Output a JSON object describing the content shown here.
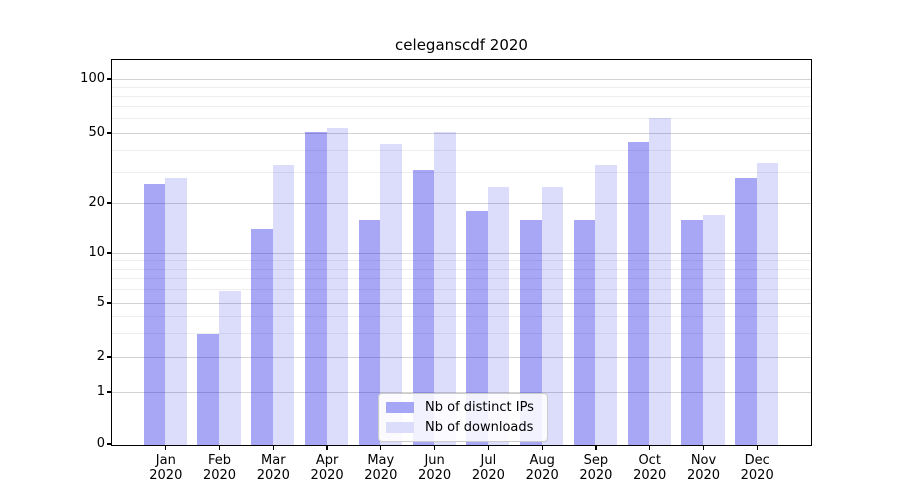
{
  "chart_data": {
    "type": "bar",
    "title": "celeganscdf 2020",
    "months": [
      "Jan",
      "Feb",
      "Mar",
      "Apr",
      "May",
      "Jun",
      "Jul",
      "Aug",
      "Sep",
      "Oct",
      "Nov",
      "Dec"
    ],
    "x_tick_year": "2020",
    "categories": [
      "Jan 2020",
      "Feb 2020",
      "Mar 2020",
      "Apr 2020",
      "May 2020",
      "Jun 2020",
      "Jul 2020",
      "Aug 2020",
      "Sep 2020",
      "Oct 2020",
      "Nov 2020",
      "Dec 2020"
    ],
    "series": [
      {
        "name": "Nb of distinct IPs",
        "color": "#a6a6f6",
        "values": [
          26,
          3,
          14,
          51,
          16,
          31,
          18,
          16,
          16,
          45,
          16,
          28
        ]
      },
      {
        "name": "Nb of downloads",
        "color": "#dcdcfb",
        "values": [
          28,
          6,
          33,
          54,
          44,
          51,
          25,
          25,
          33,
          61,
          17,
          34
        ]
      }
    ],
    "yscale": "symlog",
    "yticks": [
      0,
      1,
      2,
      5,
      10,
      20,
      50,
      100
    ],
    "minor_yticks": [
      3,
      4,
      6,
      7,
      8,
      9,
      30,
      40,
      60,
      70,
      80,
      90
    ],
    "ylim": [
      0,
      130
    ],
    "grid": true,
    "legend_position": "lower center",
    "background_color": "#ffffff",
    "grid_color": "#d3d3d3"
  }
}
